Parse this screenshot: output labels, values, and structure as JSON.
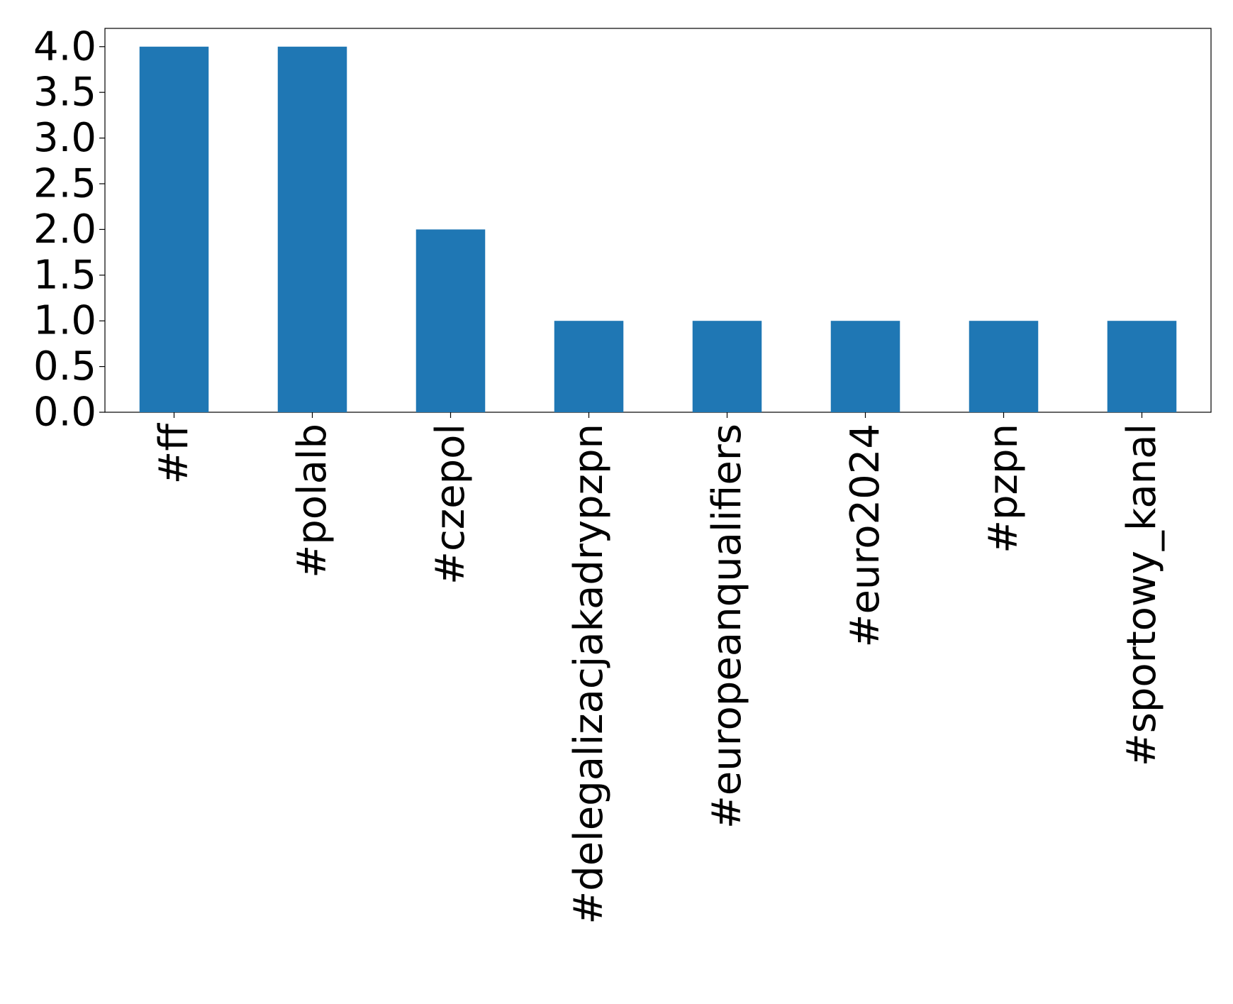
{
  "chart_data": {
    "type": "bar",
    "categories": [
      "#ff",
      "#polalb",
      "#czepol",
      "#delegalizacjakadrypzpn",
      "#europeanqualifiers",
      "#euro2024",
      "#pzpn",
      "#sportowy_kanal"
    ],
    "values": [
      4,
      4,
      2,
      1,
      1,
      1,
      1,
      1
    ],
    "color": "#1f77b4",
    "ylim": [
      0,
      4.2
    ],
    "yticks": [
      {
        "value": 0,
        "label": "0.0"
      },
      0.5,
      {
        "value": 1,
        "label": "1.0"
      },
      1.5,
      {
        "value": 2,
        "label": "2.0"
      },
      2.5,
      {
        "value": 3,
        "label": "3.0"
      },
      3.5,
      {
        "value": 4,
        "label": "4.0"
      }
    ]
  }
}
